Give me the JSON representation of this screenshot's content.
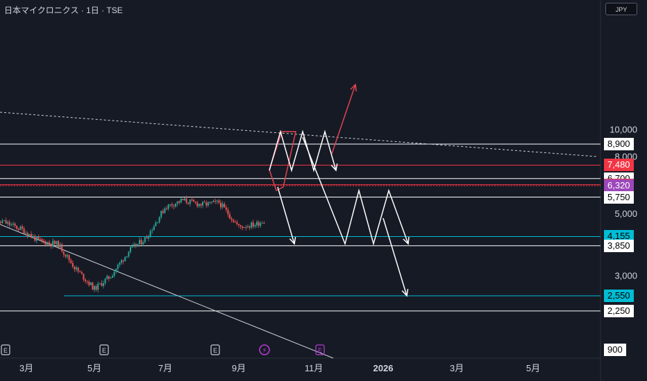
{
  "header": {
    "title": "日本マイクロニクス · 1日 · TSE",
    "currency": "JPY"
  },
  "chart_data": {
    "type": "candlestick",
    "title": "日本マイクロニクス · 1日 · TSE",
    "y_scale": "log",
    "ylim": [
      900,
      12000
    ],
    "x_ticks": [
      "3月",
      "5月",
      "7月",
      "9月",
      "11月",
      "2026",
      "3月",
      "5月"
    ],
    "axis_ticks": [
      "3,000",
      "5,000",
      "8,000",
      "10,000"
    ],
    "price_levels": [
      {
        "value": 8900,
        "label": "8,900",
        "style": "white"
      },
      {
        "value": 7480,
        "label": "7,480",
        "style": "red"
      },
      {
        "value": 6700,
        "label": "6,700",
        "style": "white"
      },
      {
        "value": 6370,
        "label": "6,370",
        "style": "red"
      },
      {
        "value": 6320,
        "label": "6,320",
        "style": "purple"
      },
      {
        "value": 5750,
        "label": "5,750",
        "style": "white"
      },
      {
        "value": 4155,
        "label": "4,155",
        "style": "cyan"
      },
      {
        "value": 3850,
        "label": "3,850",
        "style": "white"
      },
      {
        "value": 2550,
        "label": "2,550",
        "style": "cyan"
      },
      {
        "value": 2250,
        "label": "2,250",
        "style": "white"
      },
      {
        "value": 900,
        "label": "900",
        "style": "white"
      }
    ],
    "price_path": [
      [
        "2-1",
        4300
      ],
      [
        "2-15",
        4700
      ],
      [
        "3-1",
        4400
      ],
      [
        "3-15",
        4000
      ],
      [
        "4-1",
        3900
      ],
      [
        "4-15",
        3200
      ],
      [
        "5-1",
        2700
      ],
      [
        "5-15",
        3000
      ],
      [
        "6-1",
        3700
      ],
      [
        "6-15",
        4100
      ],
      [
        "7-1",
        5300
      ],
      [
        "7-15",
        5600
      ],
      [
        "8-1",
        5400
      ],
      [
        "8-15",
        5500
      ],
      [
        "9-1",
        4500
      ],
      [
        "9-15",
        4600
      ],
      [
        "10-1",
        5000
      ],
      [
        "10-15",
        6500
      ]
    ],
    "events": [
      {
        "date": "2-1",
        "label": "E"
      },
      {
        "date": "5-15",
        "label": "E"
      },
      {
        "date": "8-15",
        "label": "E"
      },
      {
        "date": "10-5",
        "label": "⚡"
      },
      {
        "date": "11-20",
        "label": "E"
      }
    ]
  },
  "colors": {
    "bg": "#161a25",
    "up": "#26a69a",
    "down": "#ef5350",
    "red": "#f23645",
    "cyan": "#00bcd4",
    "purple": "#ab47bc",
    "white": "#ffffff",
    "grid": "#2a2e39"
  }
}
